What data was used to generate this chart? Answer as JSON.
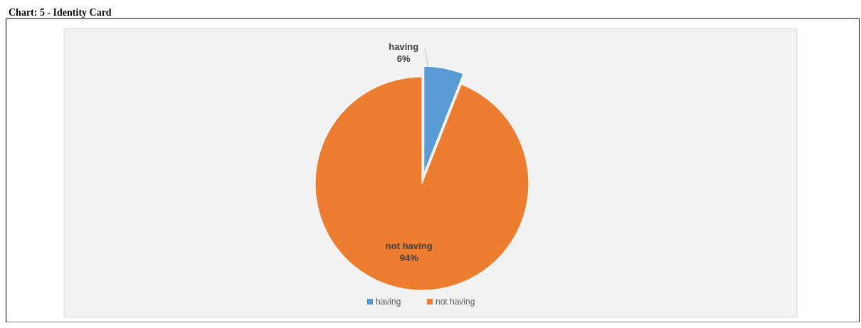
{
  "chart_data": {
    "type": "pie",
    "title": "Chart: 5 - Identity Card",
    "categories": [
      "having",
      "not having"
    ],
    "values": [
      6,
      94
    ],
    "colors": [
      "#5b9bd5",
      "#ed7d31"
    ],
    "value_labels": [
      "6%",
      "94%"
    ],
    "legend": "bottom"
  }
}
